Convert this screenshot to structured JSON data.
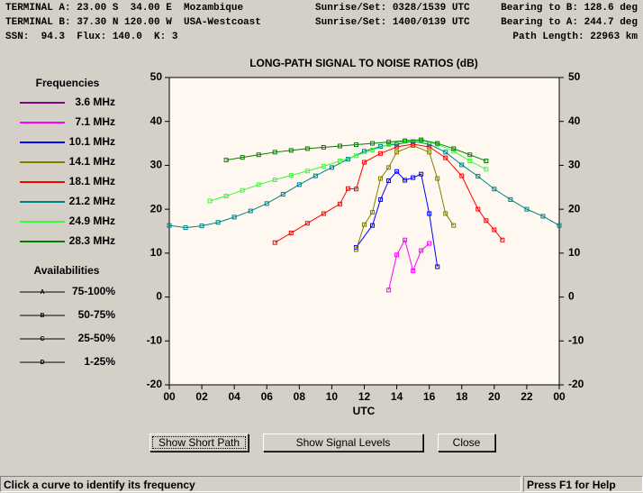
{
  "header": {
    "rows": [
      [
        "TERMINAL A: 23.00 S  34.00 E  Mozambique",
        "Sunrise/Set: 0328/1539 UTC",
        "Bearing to B: 128.6 deg"
      ],
      [
        "TERMINAL B: 37.30 N 120.00 W  USA-Westcoast",
        "Sunrise/Set: 1400/0139 UTC",
        "Bearing to A: 244.7 deg"
      ],
      [
        "SSN:  94.3  Flux: 140.0  K: 3",
        "",
        "Path Length: 22963 km"
      ]
    ]
  },
  "legend": {
    "frequencies_title": "Frequencies",
    "availabilities_title": "Availabilities",
    "availabilities": [
      {
        "label": "75-100%",
        "symbol": "A"
      },
      {
        "label": "50-75%",
        "symbol": "B"
      },
      {
        "label": "25-50%",
        "symbol": "C"
      },
      {
        "label": "1-25%",
        "symbol": "D"
      }
    ]
  },
  "chart_data": {
    "type": "line",
    "title": "LONG-PATH SIGNAL TO NOISE RATIOS (dB)",
    "x_label": "UTC",
    "xlim": [
      0,
      24
    ],
    "xticks": [
      {
        "value": 0,
        "label": "00"
      },
      {
        "value": 2,
        "label": "02"
      },
      {
        "value": 4,
        "label": "04"
      },
      {
        "value": 6,
        "label": "06"
      },
      {
        "value": 8,
        "label": "08"
      },
      10,
      12,
      14,
      16,
      18,
      20,
      22,
      {
        "value": 24,
        "label": "00"
      }
    ],
    "ylim": [
      -20,
      50
    ],
    "yticks": [
      -20,
      -10,
      0,
      10,
      20,
      30,
      40,
      50
    ],
    "series": [
      {
        "name": "3.6 MHz",
        "color": "#800080",
        "x": [],
        "values": []
      },
      {
        "name": "7.1 MHz",
        "color": "#ff00ff",
        "x": [
          13.5,
          14,
          14.5,
          15,
          15.5,
          16
        ],
        "values": [
          1.6,
          9.6,
          13,
          6,
          10.6,
          12.2
        ]
      },
      {
        "name": "10.1 MHz",
        "color": "#0000ff",
        "x": [
          11.5,
          12.5,
          13,
          13.5,
          14,
          14.5,
          15,
          15.5,
          16,
          16.5
        ],
        "values": [
          11.3,
          16.3,
          22.2,
          26.5,
          28.6,
          26.6,
          27.2,
          28,
          19,
          6.9
        ]
      },
      {
        "name": "14.1 MHz",
        "color": "#808000",
        "x": [
          11.5,
          12,
          12.5,
          13,
          13.5,
          14,
          15,
          16,
          16.5,
          17,
          17.5
        ],
        "values": [
          10.8,
          16.5,
          19.3,
          27,
          29.5,
          33,
          34.5,
          33,
          27,
          19,
          16.3
        ]
      },
      {
        "name": "18.1 MHz",
        "color": "#ff0000",
        "x": [
          6.5,
          7.5,
          8.5,
          9.5,
          10.5,
          11,
          11.5,
          12,
          13,
          14,
          15,
          16,
          17,
          18,
          19,
          19.5,
          20,
          20.5
        ],
        "values": [
          12.4,
          14.6,
          16.8,
          19,
          21.2,
          24.7,
          24.6,
          30.7,
          32.7,
          34.2,
          34.8,
          34.2,
          31.7,
          27.6,
          20,
          17.4,
          15.3,
          13
        ]
      },
      {
        "name": "21.2 MHz",
        "color": "#008080",
        "x": [
          0,
          1,
          2,
          3,
          4,
          5,
          6,
          7,
          8,
          9,
          10,
          11,
          12,
          13,
          14,
          15,
          16,
          17,
          18,
          19,
          20,
          21,
          22,
          23,
          24
        ],
        "values": [
          16.3,
          15.8,
          16.2,
          17,
          18.2,
          19.6,
          21.3,
          23.4,
          25.6,
          27.6,
          29.5,
          31.4,
          33.2,
          34.3,
          34.8,
          35.4,
          34.8,
          33,
          30.1,
          27.5,
          24.6,
          22.2,
          20,
          18.4,
          16.3
        ]
      },
      {
        "name": "24.9 MHz",
        "color": "#33ff33",
        "x": [
          2.5,
          3.5,
          4.5,
          5.5,
          6.5,
          7.5,
          8.5,
          9.5,
          10.5,
          11.5,
          12.5,
          13.5,
          14.5,
          15.5,
          16.5,
          17.5,
          18.5,
          19.5
        ],
        "values": [
          21.9,
          23,
          24.3,
          25.6,
          26.7,
          27.7,
          28.7,
          29.8,
          31,
          32.2,
          33.5,
          34.7,
          35.5,
          35.6,
          34.8,
          33.2,
          31,
          29.1
        ]
      },
      {
        "name": "28.3 MHz",
        "color": "#008000",
        "x": [
          3.5,
          4.5,
          5.5,
          6.5,
          7.5,
          8.5,
          9.5,
          10.5,
          11.5,
          12.5,
          13.5,
          14.5,
          15.5,
          16.5,
          17.5,
          18.5,
          19.5
        ],
        "values": [
          31.2,
          31.8,
          32.4,
          33,
          33.4,
          33.8,
          34.1,
          34.4,
          34.7,
          35,
          35.3,
          35.6,
          35.8,
          35,
          33.8,
          32.4,
          31
        ]
      }
    ]
  },
  "buttons": [
    "Show Short Path",
    "Show Signal Levels",
    "Close"
  ],
  "status": {
    "left": "Click a curve to identify its frequency",
    "right": "Press F1 for Help"
  }
}
